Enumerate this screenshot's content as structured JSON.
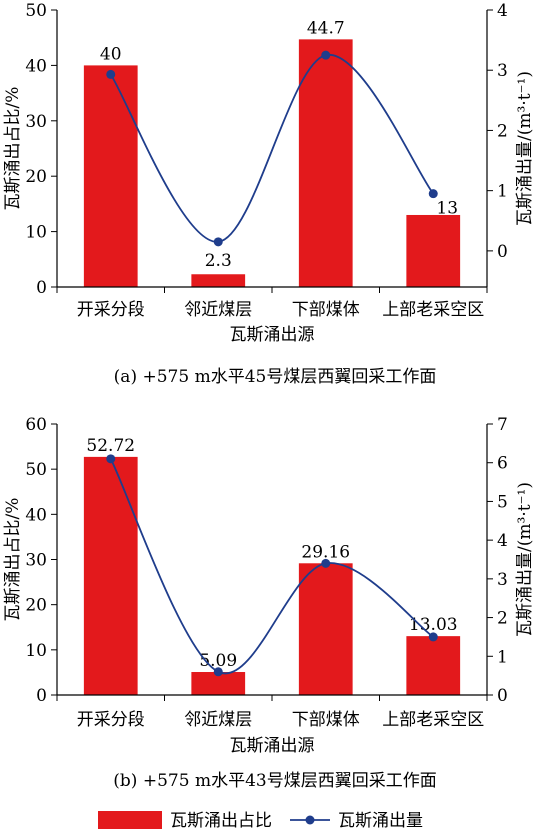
{
  "legend": {
    "bar_label": "瓦斯涌出占比",
    "line_label": "瓦斯涌出量"
  },
  "colors": {
    "bar": "#e3191c",
    "line": "#1f3d8c",
    "axis": "#000000"
  },
  "chart_data": [
    {
      "type": "bar",
      "caption": "(a)  +575 m水平45号煤层西翼回采工作面",
      "xlabel": "瓦斯涌出源",
      "ylabel": "瓦斯涌出占比/%",
      "y2label": "瓦斯涌出量/(m³·t⁻¹)",
      "categories": [
        "开采分段",
        "邻近煤层",
        "下部煤体",
        "上部老采空区"
      ],
      "ylim": [
        0,
        50
      ],
      "yticks": [
        0,
        10,
        20,
        30,
        40,
        50
      ],
      "y2lim": [
        -0.6,
        4
      ],
      "y2ticks": [
        0,
        1,
        2,
        3,
        4
      ],
      "series": [
        {
          "name": "瓦斯涌出占比",
          "axis": "left",
          "kind": "bar",
          "values": [
            40,
            2.3,
            44.7,
            13
          ],
          "labels": [
            "40",
            "2.3",
            "44.7",
            "13"
          ]
        },
        {
          "name": "瓦斯涌出量",
          "axis": "right",
          "kind": "line",
          "values": [
            2.93,
            0.15,
            3.25,
            0.95
          ]
        }
      ]
    },
    {
      "type": "bar",
      "caption": "(b)  +575 m水平43号煤层西翼回采工作面",
      "xlabel": "瓦斯涌出源",
      "ylabel": "瓦斯涌出占比/%",
      "y2label": "瓦斯涌出量/(m³·t⁻¹)",
      "categories": [
        "开采分段",
        "邻近煤层",
        "下部煤体",
        "上部老采空区"
      ],
      "ylim": [
        0,
        60
      ],
      "yticks": [
        0,
        10,
        20,
        30,
        40,
        50,
        60
      ],
      "y2lim": [
        0,
        7
      ],
      "y2ticks": [
        0,
        1,
        2,
        3,
        4,
        5,
        6,
        7
      ],
      "series": [
        {
          "name": "瓦斯涌出占比",
          "axis": "left",
          "kind": "bar",
          "values": [
            52.72,
            5.09,
            29.16,
            13.03
          ],
          "labels": [
            "52.72",
            "5.09",
            "29.16",
            "13.03"
          ]
        },
        {
          "name": "瓦斯涌出量",
          "axis": "right",
          "kind": "line",
          "values": [
            6.1,
            0.6,
            3.4,
            1.5
          ]
        }
      ]
    }
  ]
}
